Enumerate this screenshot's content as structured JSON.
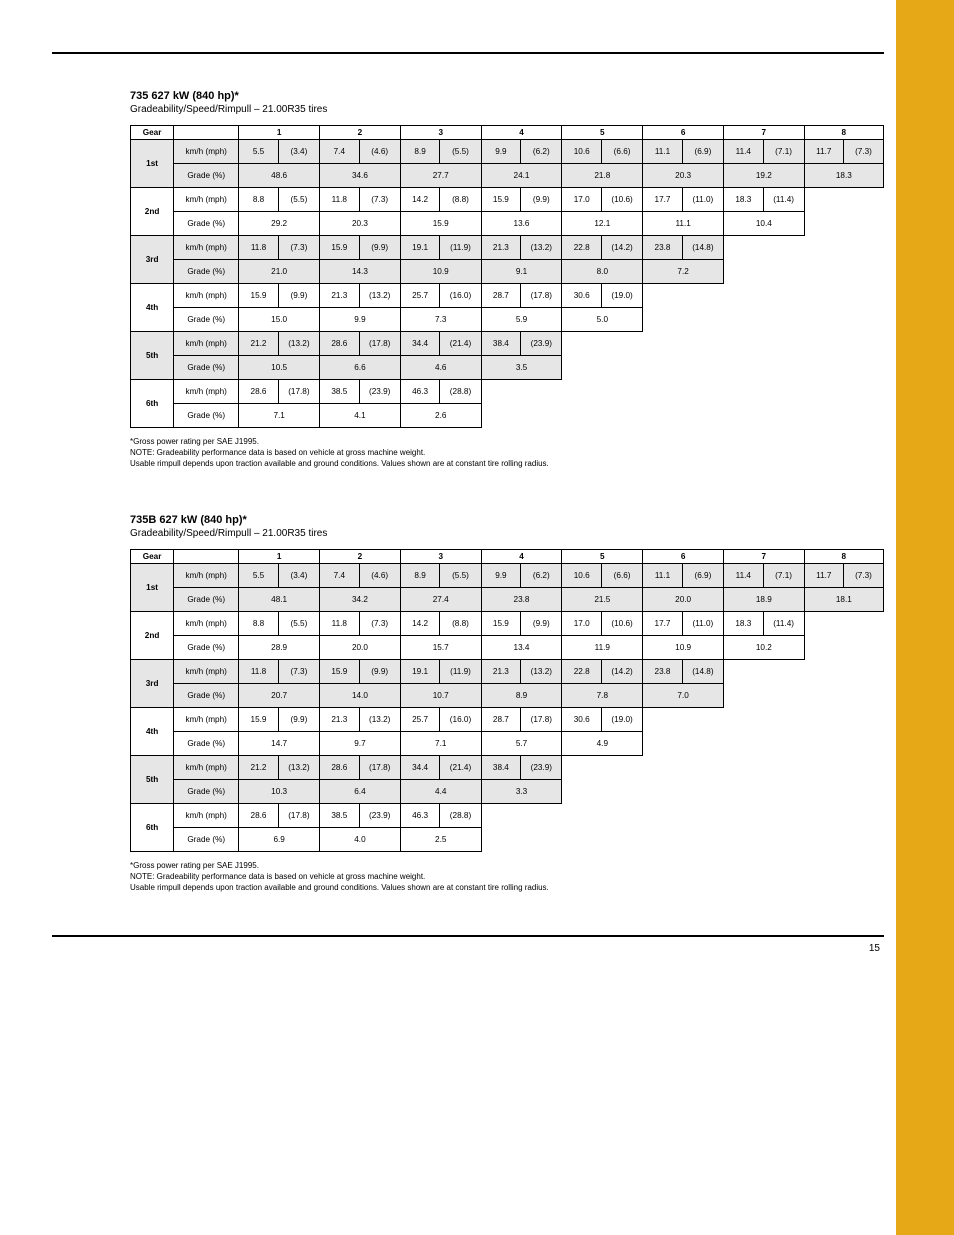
{
  "page_number": "15",
  "accent_color": "#e6a817",
  "shade_color": "#e6e6e6",
  "col_headers": [
    "1",
    "2",
    "3",
    "4",
    "5",
    "6",
    "7",
    "8"
  ],
  "tables": [
    {
      "title": "735 627 kW (840 hp)*",
      "subtitle": "Gradeability/Speed/Rimpull – 21.00R35 tires",
      "rows": [
        {
          "gear": "1st",
          "bands": [
            {
              "lbl": "km/h (mph)",
              "shade": true,
              "cells": [
                "5.5",
                "(3.4)",
                "7.4",
                "(4.6)",
                "8.9",
                "(5.5)",
                "9.9",
                "(6.2)",
                "10.6",
                "(6.6)",
                "11.1",
                "(6.9)",
                "11.4",
                "(7.1)",
                "11.7",
                "(7.3)"
              ],
              "step": 8
            },
            {
              "lbl": "Grade (%)",
              "shade": true,
              "cells": [
                "48.6",
                null,
                "34.6",
                null,
                "27.7",
                null,
                "24.1",
                null,
                "21.8",
                null,
                "20.3",
                null,
                "19.2",
                null,
                "18.3",
                null
              ],
              "step": 8
            }
          ]
        },
        {
          "gear": "2nd",
          "bands": [
            {
              "lbl": "km/h (mph)",
              "shade": false,
              "cells": [
                "8.8",
                "(5.5)",
                "11.8",
                "(7.3)",
                "14.2",
                "(8.8)",
                "15.9",
                "(9.9)",
                "17.0",
                "(10.6)",
                "17.7",
                "(11.0)",
                "18.3",
                "(11.4)"
              ],
              "step": 7
            },
            {
              "lbl": "Grade (%)",
              "shade": false,
              "cells": [
                "29.2",
                null,
                "20.3",
                null,
                "15.9",
                null,
                "13.6",
                null,
                "12.1",
                null,
                "11.1",
                null,
                "10.4",
                null
              ],
              "step": 7
            }
          ]
        },
        {
          "gear": "3rd",
          "bands": [
            {
              "lbl": "km/h (mph)",
              "shade": true,
              "cells": [
                "11.8",
                "(7.3)",
                "15.9",
                "(9.9)",
                "19.1",
                "(11.9)",
                "21.3",
                "(13.2)",
                "22.8",
                "(14.2)",
                "23.8",
                "(14.8)"
              ],
              "step": 6
            },
            {
              "lbl": "Grade (%)",
              "shade": true,
              "cells": [
                "21.0",
                null,
                "14.3",
                null,
                "10.9",
                null,
                "9.1",
                null,
                "8.0",
                null,
                "7.2",
                null
              ],
              "step": 6
            }
          ]
        },
        {
          "gear": "4th",
          "bands": [
            {
              "lbl": "km/h (mph)",
              "shade": false,
              "cells": [
                "15.9",
                "(9.9)",
                "21.3",
                "(13.2)",
                "25.7",
                "(16.0)",
                "28.7",
                "(17.8)",
                "30.6",
                "(19.0)"
              ],
              "step": 5
            },
            {
              "lbl": "Grade (%)",
              "shade": false,
              "cells": [
                "15.0",
                null,
                "9.9",
                null,
                "7.3",
                null,
                "5.9",
                null,
                "5.0",
                null
              ],
              "step": 5
            }
          ]
        },
        {
          "gear": "5th",
          "bands": [
            {
              "lbl": "km/h (mph)",
              "shade": true,
              "cells": [
                "21.2",
                "(13.2)",
                "28.6",
                "(17.8)",
                "34.4",
                "(21.4)",
                "38.4",
                "(23.9)"
              ],
              "step": 4
            },
            {
              "lbl": "Grade (%)",
              "shade": true,
              "cells": [
                "10.5",
                null,
                "6.6",
                null,
                "4.6",
                null,
                "3.5",
                null
              ],
              "step": 4
            }
          ]
        },
        {
          "gear": "6th",
          "bands": [
            {
              "lbl": "km/h (mph)",
              "shade": false,
              "cells": [
                "28.6",
                "(17.8)",
                "38.5",
                "(23.9)",
                "46.3",
                "(28.8)"
              ],
              "step": 3
            },
            {
              "lbl": "Grade (%)",
              "shade": false,
              "cells": [
                "7.1",
                null,
                "4.1",
                null,
                "2.6",
                null
              ],
              "step": 3
            }
          ]
        }
      ]
    },
    {
      "title": "735B 627 kW (840 hp)*",
      "subtitle": "Gradeability/Speed/Rimpull – 21.00R35 tires",
      "rows": [
        {
          "gear": "1st",
          "bands": [
            {
              "lbl": "km/h (mph)",
              "shade": true,
              "cells": [
                "5.5",
                "(3.4)",
                "7.4",
                "(4.6)",
                "8.9",
                "(5.5)",
                "9.9",
                "(6.2)",
                "10.6",
                "(6.6)",
                "11.1",
                "(6.9)",
                "11.4",
                "(7.1)",
                "11.7",
                "(7.3)"
              ],
              "step": 8
            },
            {
              "lbl": "Grade (%)",
              "shade": true,
              "cells": [
                "48.1",
                null,
                "34.2",
                null,
                "27.4",
                null,
                "23.8",
                null,
                "21.5",
                null,
                "20.0",
                null,
                "18.9",
                null,
                "18.1",
                null
              ],
              "step": 8
            }
          ]
        },
        {
          "gear": "2nd",
          "bands": [
            {
              "lbl": "km/h (mph)",
              "shade": false,
              "cells": [
                "8.8",
                "(5.5)",
                "11.8",
                "(7.3)",
                "14.2",
                "(8.8)",
                "15.9",
                "(9.9)",
                "17.0",
                "(10.6)",
                "17.7",
                "(11.0)",
                "18.3",
                "(11.4)"
              ],
              "step": 7
            },
            {
              "lbl": "Grade (%)",
              "shade": false,
              "cells": [
                "28.9",
                null,
                "20.0",
                null,
                "15.7",
                null,
                "13.4",
                null,
                "11.9",
                null,
                "10.9",
                null,
                "10.2",
                null
              ],
              "step": 7
            }
          ]
        },
        {
          "gear": "3rd",
          "bands": [
            {
              "lbl": "km/h (mph)",
              "shade": true,
              "cells": [
                "11.8",
                "(7.3)",
                "15.9",
                "(9.9)",
                "19.1",
                "(11.9)",
                "21.3",
                "(13.2)",
                "22.8",
                "(14.2)",
                "23.8",
                "(14.8)"
              ],
              "step": 6
            },
            {
              "lbl": "Grade (%)",
              "shade": true,
              "cells": [
                "20.7",
                null,
                "14.0",
                null,
                "10.7",
                null,
                "8.9",
                null,
                "7.8",
                null,
                "7.0",
                null
              ],
              "step": 6
            }
          ]
        },
        {
          "gear": "4th",
          "bands": [
            {
              "lbl": "km/h (mph)",
              "shade": false,
              "cells": [
                "15.9",
                "(9.9)",
                "21.3",
                "(13.2)",
                "25.7",
                "(16.0)",
                "28.7",
                "(17.8)",
                "30.6",
                "(19.0)"
              ],
              "step": 5
            },
            {
              "lbl": "Grade (%)",
              "shade": false,
              "cells": [
                "14.7",
                null,
                "9.7",
                null,
                "7.1",
                null,
                "5.7",
                null,
                "4.9",
                null
              ],
              "step": 5
            }
          ]
        },
        {
          "gear": "5th",
          "bands": [
            {
              "lbl": "km/h (mph)",
              "shade": true,
              "cells": [
                "21.2",
                "(13.2)",
                "28.6",
                "(17.8)",
                "34.4",
                "(21.4)",
                "38.4",
                "(23.9)"
              ],
              "step": 4
            },
            {
              "lbl": "Grade (%)",
              "shade": true,
              "cells": [
                "10.3",
                null,
                "6.4",
                null,
                "4.4",
                null,
                "3.3",
                null
              ],
              "step": 4
            }
          ]
        },
        {
          "gear": "6th",
          "bands": [
            {
              "lbl": "km/h (mph)",
              "shade": false,
              "cells": [
                "28.6",
                "(17.8)",
                "38.5",
                "(23.9)",
                "46.3",
                "(28.8)"
              ],
              "step": 3
            },
            {
              "lbl": "Grade (%)",
              "shade": false,
              "cells": [
                "6.9",
                null,
                "4.0",
                null,
                "2.5",
                null
              ],
              "step": 3
            }
          ]
        }
      ]
    }
  ],
  "footnotes": [
    "*Gross power rating per SAE J1995.",
    "NOTE: Gradeability performance data is based on vehicle at gross machine weight.",
    "Usable rimpull depends upon traction available and ground conditions. Values shown are at constant tire rolling radius."
  ]
}
